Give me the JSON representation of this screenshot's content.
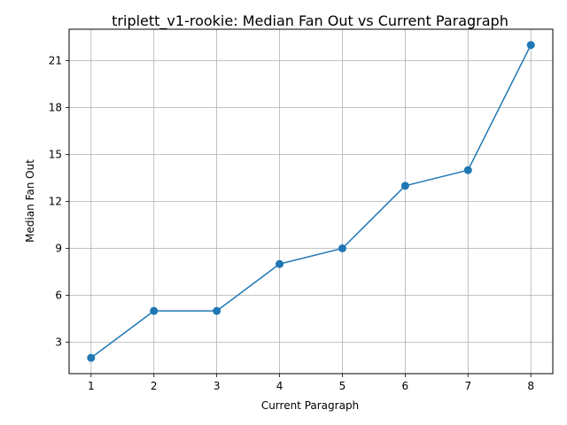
{
  "chart_data": {
    "type": "line",
    "title": "triplett_v1-rookie: Median Fan Out vs Current Paragraph",
    "xlabel": "Current Paragraph",
    "ylabel": "Median Fan Out",
    "x": [
      1,
      2,
      3,
      4,
      5,
      6,
      7,
      8
    ],
    "series": [
      {
        "values": [
          2,
          5,
          5,
          8,
          9,
          13,
          14,
          22
        ],
        "color": "#1f77b4",
        "marker": "circle"
      }
    ],
    "xlim": [
      0.65,
      8.35
    ],
    "ylim": [
      0.99,
      23.01
    ],
    "xticks": [
      1,
      2,
      3,
      4,
      5,
      6,
      7,
      8
    ],
    "yticks": [
      3,
      6,
      9,
      12,
      15,
      18,
      21
    ],
    "grid": true,
    "grid_color": "#b0b0b0"
  }
}
